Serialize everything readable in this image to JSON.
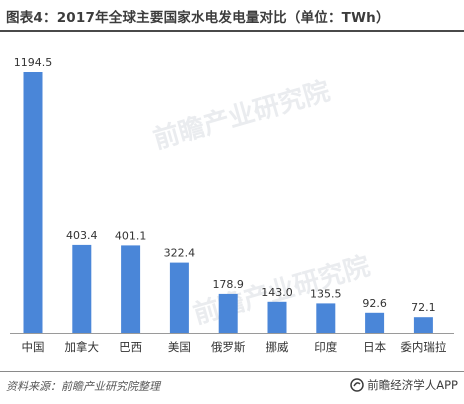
{
  "title": "图表4：2017年全球主要国家水电发电量对比（单位：TWh）",
  "footer": {
    "source": "资料来源：前瞻产业研究院整理",
    "brand": "前瞻经济学人APP"
  },
  "watermark": {
    "text": "前瞻产业研究院"
  },
  "colors": {
    "bar": "#4a86d8",
    "text": "#333333",
    "axis": "#9a9a9a"
  },
  "chart_data": {
    "type": "bar",
    "title": "图表4：2017年全球主要国家水电发电量对比（单位：TWh）",
    "categories": [
      "中国",
      "加拿大",
      "巴西",
      "美国",
      "俄罗斯",
      "挪威",
      "印度",
      "日本",
      "委内瑞拉"
    ],
    "values": [
      1194.5,
      403.4,
      401.1,
      322.4,
      178.9,
      143.0,
      135.5,
      92.6,
      72.1
    ],
    "value_labels": [
      "1194.5",
      "403.4",
      "401.1",
      "322.4",
      "178.9",
      "143.0",
      "135.5",
      "92.6",
      "72.1"
    ],
    "ylim": [
      0,
      1194.5
    ],
    "grid": false,
    "legend": "none",
    "xlabel": "",
    "ylabel": ""
  }
}
